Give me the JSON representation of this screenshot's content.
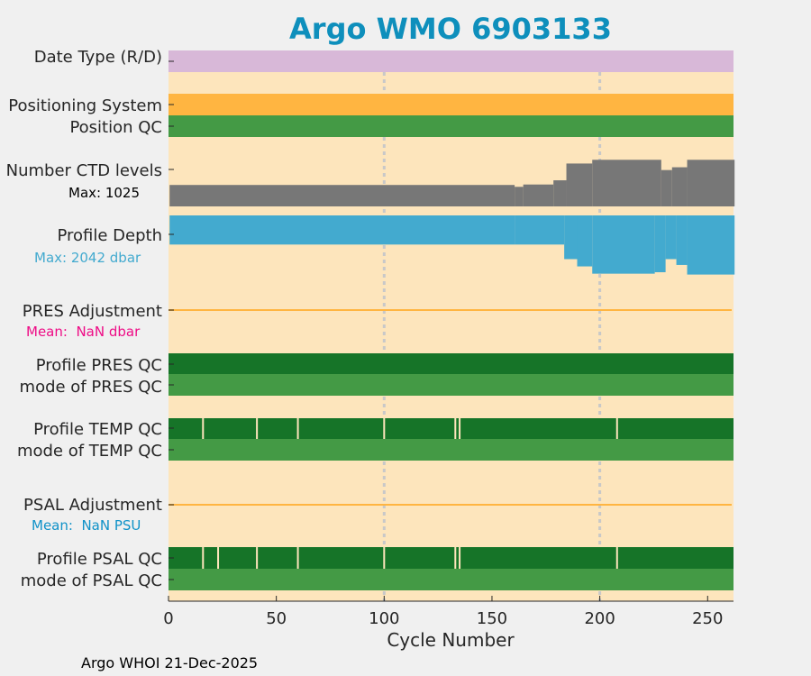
{
  "chart_data": {
    "type": "qc-timeline",
    "title": "Argo WMO 6903133",
    "xlabel": "Cycle Number",
    "xlim": [
      0,
      262
    ],
    "xticks": [
      0,
      50,
      100,
      150,
      200,
      250
    ],
    "grid_x": [
      100,
      200
    ],
    "footer": "Argo WHOI 21-Dec-2025",
    "colors": {
      "title": "#0e8fbc",
      "background": "#fde5bc",
      "date_type": "#d8b8d8",
      "positioning": "#ffb541",
      "qc_good_mode": "#449a45",
      "qc_good_profile": "#167428",
      "ctd": "#777777",
      "depth": "#43aacf",
      "adjust_line": "#ffb541",
      "pres_mean_text": "#ee0c86",
      "psal_mean_text": "#1092c8",
      "grid": "#c8c8c8"
    },
    "rows": {
      "date_type": {
        "label": "Date Type (R/D)"
      },
      "positioning": {
        "label": "Positioning System",
        "qc_label": "Position QC"
      },
      "ctd": {
        "label": "Number CTD levels",
        "max_label": "Max: 1025",
        "max": 1025
      },
      "depth": {
        "label": "Profile Depth",
        "max_label": "Max: 2042 dbar",
        "max": 2042
      },
      "pres_adj": {
        "label": "PRES Adjustment",
        "mean_label": "Mean:  NaN dbar"
      },
      "pres_qc": {
        "label": "Profile PRES QC",
        "mode_label": "mode of PRES QC"
      },
      "temp_qc": {
        "label": "Profile TEMP QC",
        "mode_label": "mode of TEMP QC",
        "gaps": [
          16,
          41,
          60,
          100,
          133,
          135,
          208
        ]
      },
      "psal_adj": {
        "label": "PSAL Adjustment",
        "mean_label": "Mean:  NaN PSU"
      },
      "psal_qc": {
        "label": "Profile PSAL QC",
        "mode_label": "mode of PSAL QC",
        "gaps": [
          16,
          23,
          41,
          60,
          100,
          133,
          135,
          208
        ]
      }
    },
    "series": [
      {
        "name": "CTD levels",
        "segments": [
          {
            "from": 1,
            "to": 160,
            "value": 460
          },
          {
            "from": 161,
            "to": 164,
            "value": 420
          },
          {
            "from": 165,
            "to": 178,
            "value": 470
          },
          {
            "from": 179,
            "to": 184,
            "value": 560
          },
          {
            "from": 185,
            "to": 196,
            "value": 920
          },
          {
            "from": 197,
            "to": 228,
            "value": 1000
          },
          {
            "from": 229,
            "to": 233,
            "value": 780
          },
          {
            "from": 234,
            "to": 240,
            "value": 840
          },
          {
            "from": 241,
            "to": 262,
            "value": 1000
          }
        ]
      },
      {
        "name": "Profile depth (dbar)",
        "segments": [
          {
            "from": 1,
            "to": 160,
            "value": 1000
          },
          {
            "from": 161,
            "to": 183,
            "value": 1000
          },
          {
            "from": 184,
            "to": 189,
            "value": 1500
          },
          {
            "from": 190,
            "to": 196,
            "value": 1750
          },
          {
            "from": 197,
            "to": 225,
            "value": 2000
          },
          {
            "from": 226,
            "to": 230,
            "value": 1950
          },
          {
            "from": 231,
            "to": 235,
            "value": 1500
          },
          {
            "from": 236,
            "to": 240,
            "value": 1700
          },
          {
            "from": 241,
            "to": 262,
            "value": 2030
          }
        ]
      }
    ]
  }
}
